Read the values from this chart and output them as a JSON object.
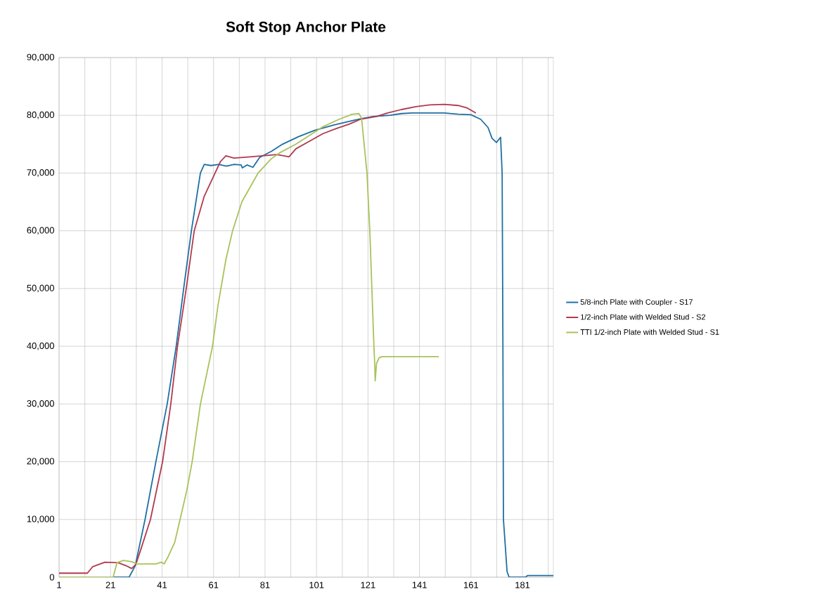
{
  "chart_data": {
    "type": "line",
    "title": "Soft Stop Anchor Plate",
    "xlim": [
      1,
      193
    ],
    "xticks": [
      1,
      {
        "value": 11,
        "label": null
      },
      21,
      {
        "value": 31,
        "label": null
      },
      41,
      {
        "value": 51,
        "label": null
      },
      61,
      {
        "value": 71,
        "label": null
      },
      81,
      {
        "value": 91,
        "label": null
      },
      101,
      {
        "value": 111,
        "label": null
      },
      121,
      {
        "value": 131,
        "label": null
      },
      141,
      {
        "value": 151,
        "label": null
      },
      161,
      {
        "value": 171,
        "label": null
      },
      181,
      {
        "value": 191,
        "label": null
      }
    ],
    "ylim": [
      0,
      90000
    ],
    "yticks": [
      0,
      {
        "value": 10000,
        "label": "10,000"
      },
      {
        "value": 20000,
        "label": "20,000"
      },
      {
        "value": 30000,
        "label": "30,000"
      },
      {
        "value": 40000,
        "label": "40,000"
      },
      {
        "value": 50000,
        "label": "50,000"
      },
      {
        "value": 60000,
        "label": "60,000"
      },
      {
        "value": 70000,
        "label": "70,000"
      },
      {
        "value": 80000,
        "label": "80,000"
      },
      {
        "value": 90000,
        "label": "90,000"
      }
    ],
    "grid": true,
    "legend": "right",
    "series": [
      {
        "name": "5/8-inch Plate with Coupler - S17",
        "color": "#1f6fa3",
        "x": [
          1,
          28.2,
          30.6,
          34.4,
          38.6,
          43,
          46.5,
          49.4,
          52.4,
          55.9,
          57.4,
          60,
          63,
          66,
          69,
          71.7,
          72.2,
          74,
          76.3,
          78.9,
          83.6,
          87.8,
          94,
          100.3,
          107.6,
          116,
          123,
          129.6,
          134,
          138,
          145,
          150.6,
          156,
          161,
          164.8,
          167.6,
          169.2,
          170.9,
          172.5,
          173.1,
          173.4,
          173.6,
          174,
          175,
          175.8,
          182.2,
          183,
          193
        ],
        "values": [
          0,
          0,
          2000,
          10000,
          20000,
          30000,
          40000,
          50000,
          60000,
          70000,
          71500,
          71300,
          71500,
          71200,
          71500,
          71400,
          70900,
          71400,
          71000,
          72700,
          73800,
          75000,
          76300,
          77400,
          78300,
          79200,
          79800,
          80000,
          80300,
          80400,
          80400,
          80400,
          80200,
          80100,
          79300,
          77900,
          76000,
          75300,
          76200,
          70000,
          40000,
          10000,
          7500,
          1000,
          0,
          0,
          300,
          300
        ]
      },
      {
        "name": "1/2-inch Plate with Welded Stud - S2",
        "color": "#b03a4e",
        "x": [
          1,
          12,
          14,
          18.8,
          24,
          27,
          29.2,
          30.8,
          32.9,
          36.5,
          41.2,
          44.4,
          47,
          50.4,
          53.5,
          57.4,
          61.6,
          63.7,
          65.8,
          68.9,
          75.2,
          80.4,
          85.6,
          88.3,
          90.3,
          93,
          98.2,
          103.4,
          108.6,
          113.8,
          118,
          124.3,
          128.6,
          134,
          139.6,
          145,
          150.6,
          156,
          159.4,
          162.9
        ],
        "values": [
          700,
          700,
          1800,
          2600,
          2500,
          2000,
          1500,
          2200,
          5000,
          10000,
          20000,
          30000,
          40000,
          50000,
          60000,
          66000,
          70000,
          72000,
          73000,
          72600,
          72800,
          73000,
          73200,
          73000,
          72800,
          74200,
          75500,
          76800,
          77700,
          78500,
          79300,
          79800,
          80400,
          81000,
          81500,
          81800,
          81900,
          81700,
          81300,
          80400
        ]
      },
      {
        "name": "TTI 1/2-inch Plate with Welded Stud - S1",
        "color": "#a9c25a",
        "x": [
          1,
          22,
          23.5,
          26,
          29.2,
          31.3,
          38.6,
          40.7,
          41.8,
          43.3,
          45.9,
          48,
          50.6,
          52.7,
          55.9,
          60.6,
          62.7,
          65.8,
          68.4,
          72,
          78.3,
          83.5,
          86.7,
          93,
          98.2,
          103.4,
          109.7,
          114.9,
          117.5,
          118.5,
          120.6,
          121.7,
          122.5,
          123.3,
          123.6,
          123.8,
          124.3,
          125.3,
          126.4,
          148.5
        ],
        "values": [
          0,
          0,
          2500,
          2900,
          2700,
          2300,
          2300,
          2600,
          2300,
          3500,
          6000,
          10000,
          15000,
          20000,
          30000,
          40000,
          47000,
          55000,
          60000,
          65000,
          70000,
          72500,
          73500,
          75000,
          76500,
          78000,
          79300,
          80200,
          80300,
          79500,
          70000,
          60000,
          50000,
          40000,
          37000,
          34000,
          37000,
          38000,
          38200,
          38200
        ]
      }
    ]
  }
}
